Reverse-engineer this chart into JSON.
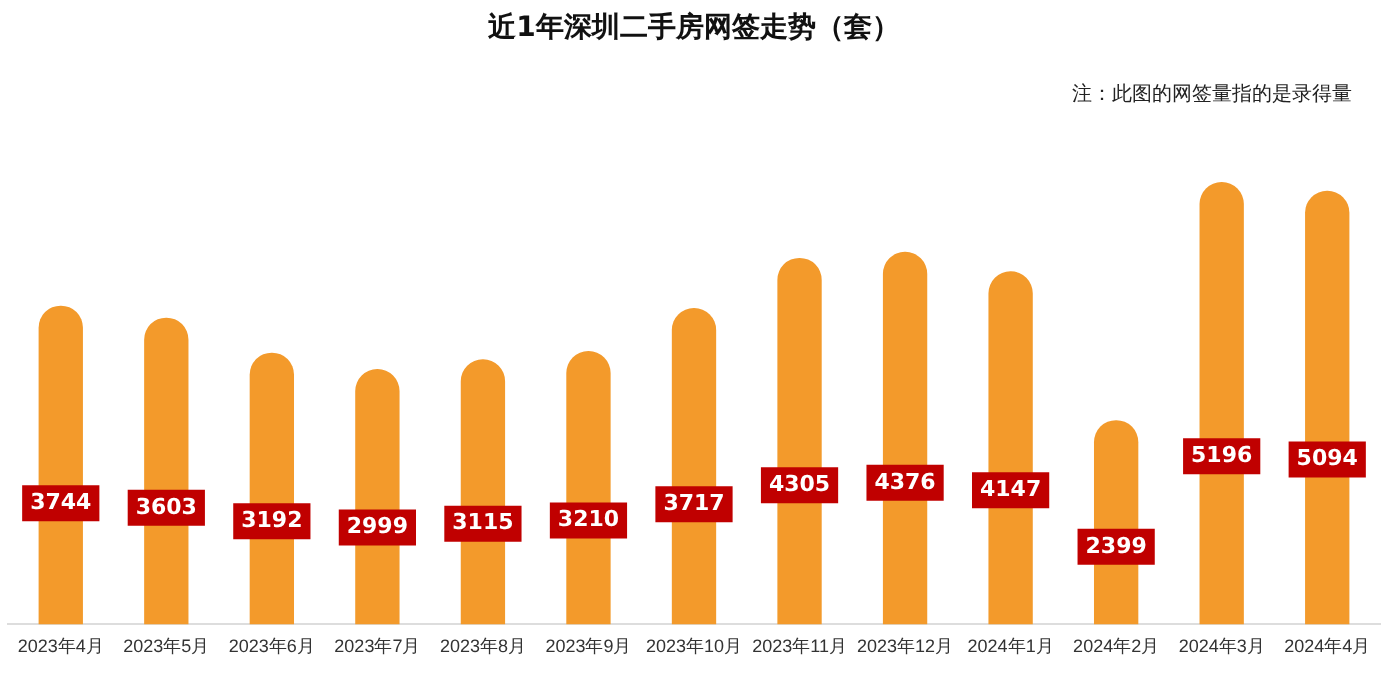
{
  "chart_data": {
    "type": "bar",
    "title": "近1年深圳二手房网签走势（套）",
    "annotations": [
      "注：此图的网签量指的是录得量"
    ],
    "categories": [
      "2023年4月",
      "2023年5月",
      "2023年6月",
      "2023年7月",
      "2023年8月",
      "2023年9月",
      "2023年10月",
      "2023年11月",
      "2023年12月",
      "2024年1月",
      "2024年2月",
      "2024年3月",
      "2024年4月"
    ],
    "values": [
      3744,
      3603,
      3192,
      2999,
      3115,
      3210,
      3717,
      4305,
      4376,
      4147,
      2399,
      5196,
      5094
    ],
    "color": "#f39a2b",
    "data_labels": true,
    "grid": false,
    "legend": false
  }
}
